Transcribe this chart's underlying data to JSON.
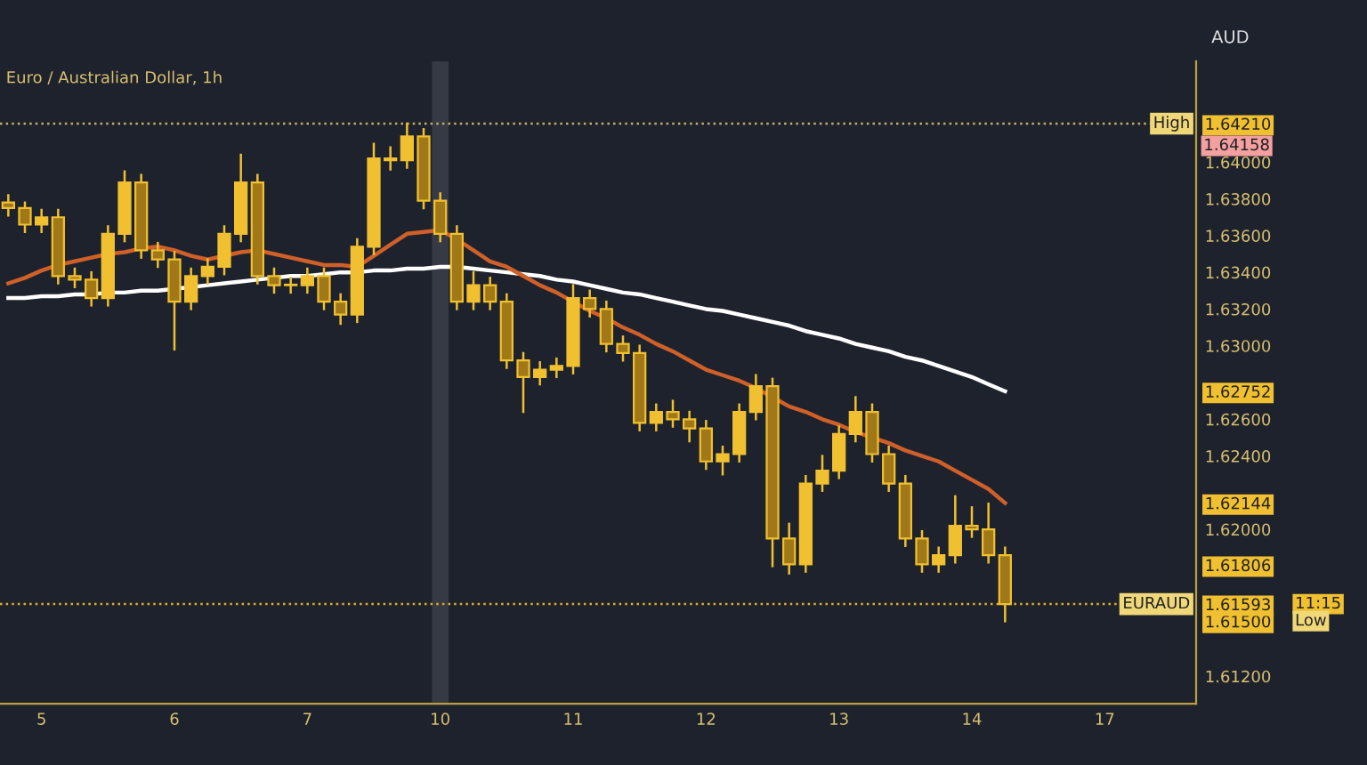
{
  "chart_data": {
    "type": "candlestick",
    "title": "Euro / Australian Dollar, 1h",
    "ylabel": "AUD",
    "color": "#f0c030",
    "categories": [
      null,
      null,
      "5",
      null,
      null,
      null,
      null,
      null,
      null,
      null,
      "6",
      null,
      null,
      null,
      null,
      null,
      null,
      null,
      "7",
      null,
      null,
      null,
      null,
      null,
      null,
      null,
      "10",
      null,
      null,
      null,
      null,
      null,
      null,
      null,
      "11",
      null,
      null,
      null,
      null,
      null,
      null,
      null,
      "12",
      null,
      null,
      null,
      null,
      null,
      null,
      null,
      "13",
      null,
      null,
      null,
      null,
      null,
      null,
      null,
      "14",
      null,
      null,
      null,
      null,
      null,
      null,
      null,
      "17",
      null,
      null,
      null,
      null,
      null
    ],
    "ohlc": [
      [
        1.6378,
        1.6382,
        1.6371,
        1.6375
      ],
      [
        1.6375,
        1.6378,
        1.6362,
        1.6366
      ],
      [
        1.6366,
        1.6374,
        1.6362,
        1.637
      ],
      [
        1.637,
        1.6374,
        1.6334,
        1.6338
      ],
      [
        1.6338,
        1.6342,
        1.6332,
        1.6336
      ],
      [
        1.6336,
        1.634,
        1.6322,
        1.6326
      ],
      [
        1.6326,
        1.6365,
        1.6322,
        1.6361
      ],
      [
        1.6361,
        1.6395,
        1.6357,
        1.6389
      ],
      [
        1.6389,
        1.6393,
        1.6348,
        1.6352
      ],
      [
        1.6352,
        1.6356,
        1.6343,
        1.6347
      ],
      [
        1.6347,
        1.6351,
        1.6298,
        1.6324
      ],
      [
        1.6324,
        1.6342,
        1.632,
        1.6338
      ],
      [
        1.6338,
        1.6347,
        1.6334,
        1.6343
      ],
      [
        1.6343,
        1.6365,
        1.6339,
        1.6361
      ],
      [
        1.6361,
        1.6404,
        1.6357,
        1.6389
      ],
      [
        1.6389,
        1.6393,
        1.6334,
        1.6338
      ],
      [
        1.6338,
        1.6342,
        1.6329,
        1.6333
      ],
      [
        1.6333,
        1.6337,
        1.6329,
        1.6333
      ],
      [
        1.6333,
        1.6342,
        1.6329,
        1.6338
      ],
      [
        1.6338,
        1.6342,
        1.632,
        1.6324
      ],
      [
        1.6324,
        1.6328,
        1.6312,
        1.6317
      ],
      [
        1.6317,
        1.6358,
        1.6313,
        1.6354
      ],
      [
        1.6354,
        1.641,
        1.635,
        1.6402
      ],
      [
        1.6402,
        1.6408,
        1.6396,
        1.6401
      ],
      [
        1.6401,
        1.6421,
        1.6397,
        1.6414
      ],
      [
        1.6414,
        1.6418,
        1.6375,
        1.6379
      ],
      [
        1.6379,
        1.6383,
        1.6357,
        1.6361
      ],
      [
        1.6361,
        1.6365,
        1.632,
        1.6324
      ],
      [
        1.6324,
        1.634,
        1.632,
        1.6333
      ],
      [
        1.6333,
        1.6337,
        1.632,
        1.6324
      ],
      [
        1.6324,
        1.6328,
        1.6288,
        1.6292
      ],
      [
        1.6292,
        1.6296,
        1.6264,
        1.6283
      ],
      [
        1.6283,
        1.6291,
        1.6279,
        1.6287
      ],
      [
        1.6287,
        1.6293,
        1.6283,
        1.6289
      ],
      [
        1.6289,
        1.6333,
        1.6285,
        1.6326
      ],
      [
        1.6326,
        1.633,
        1.6316,
        1.632
      ],
      [
        1.632,
        1.6324,
        1.6297,
        1.6301
      ],
      [
        1.6301,
        1.6305,
        1.6292,
        1.6296
      ],
      [
        1.6296,
        1.63,
        1.6254,
        1.6258
      ],
      [
        1.6258,
        1.6268,
        1.6254,
        1.6264
      ],
      [
        1.6264,
        1.627,
        1.6256,
        1.626
      ],
      [
        1.626,
        1.6264,
        1.6248,
        1.6255
      ],
      [
        1.6255,
        1.6259,
        1.6233,
        1.6237
      ],
      [
        1.6237,
        1.6245,
        1.623,
        1.6241
      ],
      [
        1.6241,
        1.6268,
        1.6237,
        1.6264
      ],
      [
        1.6264,
        1.6284,
        1.626,
        1.6278
      ],
      [
        1.6278,
        1.6282,
        1.618,
        1.6195
      ],
      [
        1.6195,
        1.6203,
        1.6176,
        1.6181
      ],
      [
        1.6181,
        1.6229,
        1.6177,
        1.6225
      ],
      [
        1.6225,
        1.624,
        1.6221,
        1.6232
      ],
      [
        1.6232,
        1.6256,
        1.6228,
        1.6252
      ],
      [
        1.6252,
        1.6272,
        1.6248,
        1.6264
      ],
      [
        1.6264,
        1.6268,
        1.6237,
        1.6241
      ],
      [
        1.6241,
        1.6245,
        1.6221,
        1.6225
      ],
      [
        1.6225,
        1.6229,
        1.6191,
        1.6195
      ],
      [
        1.6195,
        1.6199,
        1.6177,
        1.6181
      ],
      [
        1.6181,
        1.619,
        1.6177,
        1.6186
      ],
      [
        1.6186,
        1.6218,
        1.6182,
        1.6202
      ],
      [
        1.6202,
        1.6212,
        1.6196,
        1.62
      ],
      [
        1.62,
        1.6214,
        1.6182,
        1.6186
      ],
      [
        1.6186,
        1.619,
        1.615,
        1.61593
      ],
      null,
      null,
      null,
      null,
      null,
      null,
      null,
      null,
      null,
      null,
      null
    ],
    "series": [
      {
        "type": "line",
        "color": "#ffffff",
        "values": [
          1.6326,
          1.6326,
          1.6327,
          1.6327,
          1.6328,
          1.6328,
          1.6329,
          1.6329,
          1.633,
          1.633,
          1.6331,
          1.6332,
          1.6333,
          1.6334,
          1.6335,
          1.6336,
          1.6337,
          1.6338,
          1.6338,
          1.6339,
          1.634,
          1.634,
          1.6341,
          1.6341,
          1.6342,
          1.6342,
          1.6343,
          1.6343,
          1.6342,
          1.6341,
          1.634,
          1.6339,
          1.6338,
          1.6336,
          1.6335,
          1.6333,
          1.6331,
          1.6329,
          1.6328,
          1.6326,
          1.6324,
          1.6322,
          1.632,
          1.6319,
          1.6317,
          1.6315,
          1.6313,
          1.6311,
          1.6308,
          1.6306,
          1.6304,
          1.6301,
          1.6299,
          1.6297,
          1.6294,
          1.6292,
          1.6289,
          1.6286,
          1.6283,
          1.6279,
          1.62752,
          null,
          null,
          null,
          null,
          null,
          null,
          null,
          null,
          null,
          null,
          null
        ]
      },
      {
        "type": "line",
        "color": "#d0602a",
        "values": [
          1.6334,
          1.6337,
          1.6341,
          1.6344,
          1.6346,
          1.6348,
          1.635,
          1.6351,
          1.6353,
          1.6354,
          1.6352,
          1.6349,
          1.6347,
          1.6349,
          1.6351,
          1.6352,
          1.635,
          1.6348,
          1.6346,
          1.6344,
          1.6344,
          1.6343,
          1.6349,
          1.6355,
          1.6361,
          1.6362,
          1.6363,
          1.6358,
          1.6352,
          1.6346,
          1.6343,
          1.6338,
          1.6333,
          1.6329,
          1.6324,
          1.6319,
          1.6315,
          1.631,
          1.6306,
          1.6301,
          1.6297,
          1.6292,
          1.6287,
          1.6284,
          1.6281,
          1.6277,
          1.6272,
          1.6267,
          1.6264,
          1.626,
          1.6257,
          1.6253,
          1.625,
          1.6247,
          1.6243,
          1.624,
          1.6237,
          1.6232,
          1.6227,
          1.6222,
          1.62144,
          null,
          null,
          null,
          null,
          null,
          null,
          null,
          null,
          null,
          null,
          null
        ]
      }
    ],
    "ylim": [
      1.6105,
      1.6455
    ],
    "yticks": [
      {
        "value": 1.612,
        "label": "1.61200"
      },
      {
        "value": 1.615,
        "label": "1.61500"
      },
      1.61593,
      1.61806,
      {
        "value": 1.62,
        "label": "1.62000"
      },
      1.62144,
      {
        "value": 1.624,
        "label": "1.62400"
      },
      {
        "value": 1.626,
        "label": "1.62600"
      },
      1.62752,
      {
        "value": 1.63,
        "label": "1.63000"
      },
      {
        "value": 1.632,
        "label": "1.63200"
      },
      {
        "value": 1.634,
        "label": "1.63400"
      },
      {
        "value": 1.636,
        "label": "1.63600"
      },
      {
        "value": 1.638,
        "label": "1.63800"
      },
      {
        "value": 1.64,
        "label": "1.64000"
      },
      {
        "value": 1.6421,
        "label": "1.64210"
      }
    ],
    "bands": [
      {
        "axis": "x",
        "from": "10",
        "to": "10",
        "color": "#363a45"
      }
    ],
    "ref_lines": [
      {
        "axis": "y",
        "value": 1.6421,
        "label": "High",
        "color": "#c8b060",
        "line_style": "dotted"
      },
      {
        "axis": "y",
        "value": 1.61593,
        "label": "EURAUD",
        "color": "#e0b020",
        "line_style": "dotted"
      }
    ],
    "annotations": [
      "1.64158",
      "11:15",
      "Low"
    ],
    "grid": false
  }
}
